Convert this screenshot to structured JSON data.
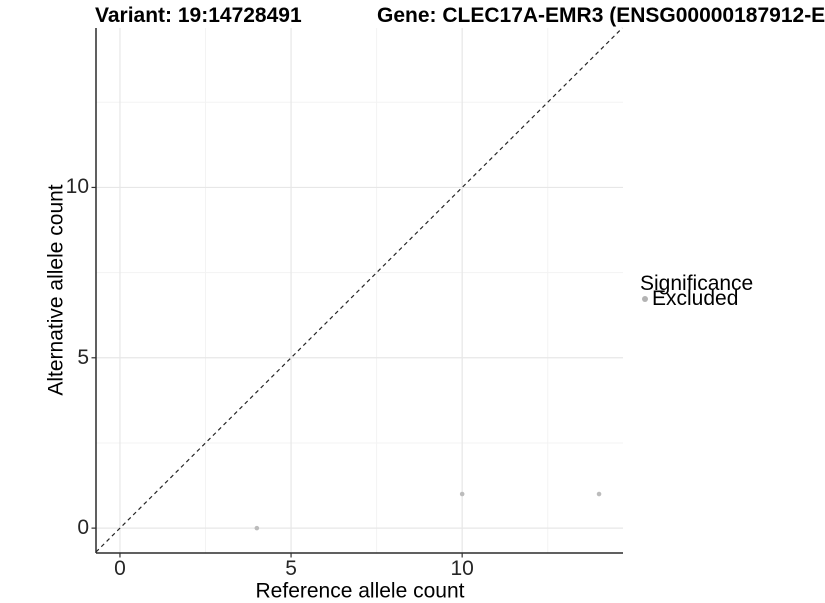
{
  "titles": {
    "variant": "Variant: 19:14728491",
    "gene": "Gene: CLEC17A-EMR3 (ENSG00000187912-E"
  },
  "chart_data": {
    "type": "scatter",
    "xlabel": "Reference allele count",
    "ylabel": "Alternative allele count",
    "xlim": [
      -0.7,
      14.7
    ],
    "ylim": [
      -0.73,
      14.68
    ],
    "x_ticks": [
      0,
      5,
      10
    ],
    "y_ticks": [
      0,
      5,
      10
    ],
    "x_minor_ticks": [
      2.5,
      7.5,
      12.5
    ],
    "y_minor_ticks": [
      2.5,
      7.5,
      12.5
    ],
    "grid": "major+minor",
    "identity_line": {
      "style": "dashed",
      "slope": 1,
      "intercept": 0
    },
    "series": [
      {
        "name": "Excluded",
        "points": [
          {
            "x": 4,
            "y": 0
          },
          {
            "x": 10,
            "y": 1
          },
          {
            "x": 14,
            "y": 1
          }
        ]
      }
    ],
    "legend": {
      "title": "Significance",
      "position": "right",
      "items": [
        {
          "label": "Excluded",
          "color": "#b3b3b3"
        }
      ]
    },
    "colors": {
      "point": "#bcbcbc",
      "grid_major": "#e7e7e7",
      "grid_minor": "#f3f3f3",
      "axis_line": "#2b2b2b",
      "tick_mark": "#333333",
      "dashed_line": "#262626",
      "tick_text": "#262626"
    }
  }
}
